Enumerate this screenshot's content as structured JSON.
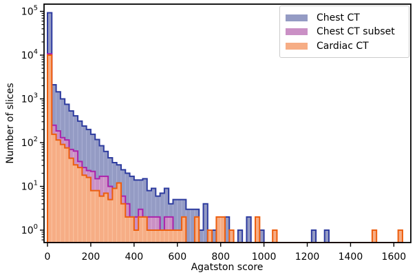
{
  "chart_data": {
    "type": "histogram",
    "title": "",
    "xlabel": "Agatston score",
    "ylabel": "Number of slices",
    "y_scale": "log",
    "x_ticks": [
      0,
      200,
      400,
      600,
      800,
      1000,
      1200,
      1400,
      1600
    ],
    "y_tick_exponents": [
      0,
      1,
      2,
      3,
      4,
      5
    ],
    "xlim": [
      -16,
      1679
    ],
    "grid": false,
    "legend_position": "upper right",
    "bin_start": 0,
    "bin_width": 20,
    "series": [
      {
        "name": "Chest CT",
        "edge_color": "#2d3b9f",
        "fill_color": "#949bc4",
        "separator_color": "#a9afd4",
        "values": [
          93000,
          2100,
          1450,
          1000,
          750,
          530,
          410,
          310,
          240,
          200,
          155,
          118,
          85,
          63,
          45,
          35,
          31,
          24,
          20,
          17,
          14,
          14,
          15,
          8,
          9,
          6,
          7,
          9,
          4,
          5,
          5,
          5,
          3,
          3,
          3,
          1,
          4,
          0,
          1,
          0,
          0,
          2,
          1,
          0,
          1,
          0,
          2,
          0,
          0,
          1,
          0,
          0,
          0,
          0,
          0,
          0,
          0,
          0,
          0,
          0,
          0,
          1,
          0,
          0,
          1,
          0,
          0,
          0,
          0,
          0,
          0,
          0,
          0,
          0,
          0,
          0,
          0,
          0,
          0,
          0,
          0,
          0
        ]
      },
      {
        "name": "Chest CT subset",
        "edge_color": "#ab22ab",
        "fill_color": "#ca90c5",
        "separator_color": "#d8abd2",
        "values": [
          10700,
          250,
          185,
          130,
          115,
          70,
          64,
          37,
          27,
          23,
          22,
          15,
          17,
          17,
          10,
          7,
          8,
          6,
          4,
          2,
          2,
          3,
          2,
          2,
          2,
          2,
          1,
          2,
          2,
          0,
          0,
          0,
          0,
          0,
          0,
          0,
          0,
          0,
          0,
          0,
          0,
          0,
          0,
          0,
          0,
          0,
          0,
          0,
          0,
          0,
          0,
          0,
          0,
          0,
          0,
          0,
          0,
          0,
          0,
          0,
          0,
          0,
          0,
          0,
          0,
          0,
          0,
          0,
          0,
          0,
          0,
          0,
          0,
          0,
          0,
          0,
          0,
          0,
          0,
          0,
          0,
          0
        ]
      },
      {
        "name": "Cardiac CT",
        "edge_color": "#ed5e0e",
        "fill_color": "#f6ad85",
        "separator_color": "#f9c29f",
        "values": [
          10000,
          155,
          115,
          91,
          76,
          44,
          31,
          27,
          18,
          16,
          8,
          8,
          6,
          7,
          5,
          9,
          12,
          4,
          2,
          2,
          1,
          2,
          2,
          1,
          1,
          1,
          1,
          1,
          1,
          1,
          1,
          2,
          0,
          0,
          2,
          0,
          0,
          1,
          0,
          2,
          2,
          0,
          1,
          0,
          0,
          0,
          0,
          0,
          2,
          0,
          0,
          0,
          1,
          0,
          0,
          0,
          0,
          0,
          0,
          0,
          0,
          0,
          0,
          0,
          0,
          0,
          0,
          0,
          0,
          0,
          0,
          0,
          0,
          0,
          0,
          1,
          0,
          0,
          0,
          0,
          0,
          1
        ]
      }
    ]
  }
}
